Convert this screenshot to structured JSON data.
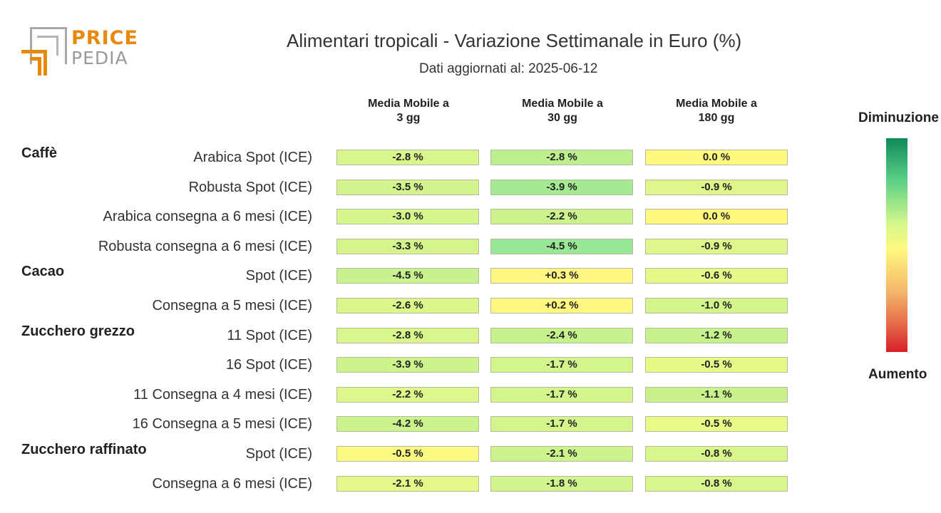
{
  "logo": {
    "word1": "PRICE",
    "word2": "PEDIA"
  },
  "chart_data": {
    "type": "table",
    "title": "Alimentari tropicali - Variazione Settimanale in Euro (%)",
    "subtitle": "Dati aggiornati al: 2025-06-12",
    "columns": [
      "Media Mobile a\n3 gg",
      "Media Mobile a\n30 gg",
      "Media Mobile a\n180 gg"
    ],
    "legend": {
      "top": "Diminuzione",
      "bottom": "Aumento"
    },
    "groups": [
      {
        "name": "Caffè",
        "rows": [
          {
            "label": "Arabica Spot (ICE)",
            "values": [
              "-2.8 %",
              "-2.8 %",
              "0.0 %"
            ],
            "colors": [
              "#d8f68c",
              "#bdef8e",
              "#fff97f"
            ]
          },
          {
            "label": "Robusta Spot (ICE)",
            "values": [
              "-3.5 %",
              "-3.9 %",
              "-0.9 %"
            ],
            "colors": [
              "#d3f48c",
              "#a4ea92",
              "#dff78a"
            ]
          },
          {
            "label": "Arabica consegna a 6 mesi (ICE)",
            "values": [
              "-3.0 %",
              "-2.2 %",
              "0.0 %"
            ],
            "colors": [
              "#d6f58c",
              "#cbf28d",
              "#fff97f"
            ]
          },
          {
            "label": "Robusta consegna a 6 mesi (ICE)",
            "values": [
              "-3.3 %",
              "-4.5 %",
              "-0.9 %"
            ],
            "colors": [
              "#d5f48c",
              "#98e895",
              "#dff78a"
            ]
          }
        ]
      },
      {
        "name": "Cacao",
        "rows": [
          {
            "label": "Spot (ICE)",
            "values": [
              "-4.5 %",
              "+0.3 %",
              "-0.6 %"
            ],
            "colors": [
              "#c8f28d",
              "#fff781",
              "#e5f888"
            ]
          },
          {
            "label": "Consegna a 5 mesi (ICE)",
            "values": [
              "-2.6 %",
              "+0.2 %",
              "-1.0 %"
            ],
            "colors": [
              "#dbf68b",
              "#fff880",
              "#d4f48c"
            ]
          }
        ]
      },
      {
        "name": "Zucchero grezzo",
        "rows": [
          {
            "label": "11 Spot (ICE)",
            "values": [
              "-2.8 %",
              "-2.4 %",
              "-1.2 %"
            ],
            "colors": [
              "#d8f68c",
              "#c6f18d",
              "#c6f18d"
            ]
          },
          {
            "label": "16 Spot (ICE)",
            "values": [
              "-3.9 %",
              "-1.7 %",
              "-0.5 %"
            ],
            "colors": [
              "#cdf38d",
              "#d4f48c",
              "#e9f987"
            ]
          },
          {
            "label": "11 Consegna a 4 mesi (ICE)",
            "values": [
              "-2.2 %",
              "-1.7 %",
              "-1.1 %"
            ],
            "colors": [
              "#def78a",
              "#d4f48c",
              "#c9f28d"
            ]
          },
          {
            "label": "16 Consegna a 5 mesi (ICE)",
            "values": [
              "-4.2 %",
              "-1.7 %",
              "-0.5 %"
            ],
            "colors": [
              "#caf28d",
              "#d4f48c",
              "#eafa86"
            ]
          }
        ]
      },
      {
        "name": "Zucchero raffinato",
        "rows": [
          {
            "label": "Spot (ICE)",
            "values": [
              "-0.5 %",
              "-2.1 %",
              "-0.8 %"
            ],
            "colors": [
              "#fbf982",
              "#cdf38d",
              "#d8f68c"
            ]
          },
          {
            "label": "Consegna a 6 mesi (ICE)",
            "values": [
              "-2.1 %",
              "-1.8 %",
              "-0.8 %"
            ],
            "colors": [
              "#e3f889",
              "#d2f48c",
              "#d8f68c"
            ]
          }
        ]
      }
    ]
  }
}
